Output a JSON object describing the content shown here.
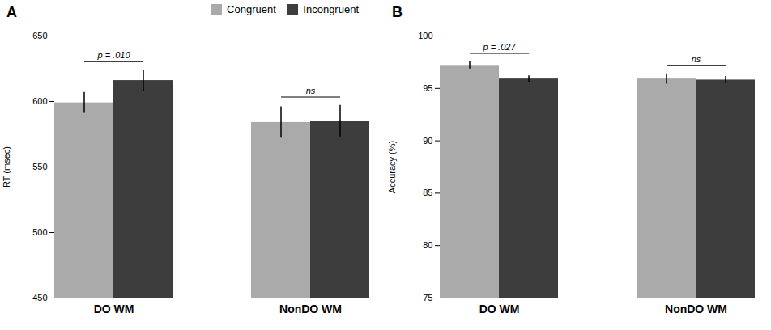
{
  "chart_data": [
    {
      "type": "bar",
      "title": "A",
      "ylabel": "RT (msec)",
      "categories": [
        "DO WM",
        "NonDO WM"
      ],
      "series": [
        {
          "name": "Congruent",
          "color": "#aaaaaa",
          "values": [
            599,
            584
          ],
          "errors": [
            8,
            12
          ]
        },
        {
          "name": "Incongruent",
          "color": "#3d3d3d",
          "values": [
            616,
            585
          ],
          "errors": [
            8,
            12
          ]
        }
      ],
      "annotations": [
        "p = .010",
        "ns"
      ],
      "ylim": [
        450,
        650
      ],
      "yticks": [
        450,
        500,
        550,
        600,
        650
      ],
      "legend": "upper right"
    },
    {
      "type": "bar",
      "title": "B",
      "ylabel": "Accuracy (%)",
      "categories": [
        "DO WM",
        "NonDO WM"
      ],
      "series": [
        {
          "name": "Congruent",
          "color": "#aaaaaa",
          "values": [
            97.2,
            95.9
          ],
          "errors": [
            0.35,
            0.5
          ]
        },
        {
          "name": "Incongruent",
          "color": "#3d3d3d",
          "values": [
            95.9,
            95.8
          ],
          "errors": [
            0.3,
            0.35
          ]
        }
      ],
      "annotations": [
        "p = .027",
        "ns"
      ],
      "ylim": [
        75,
        100
      ],
      "yticks": [
        75,
        80,
        85,
        90,
        95,
        100
      ],
      "legend": false
    }
  ]
}
